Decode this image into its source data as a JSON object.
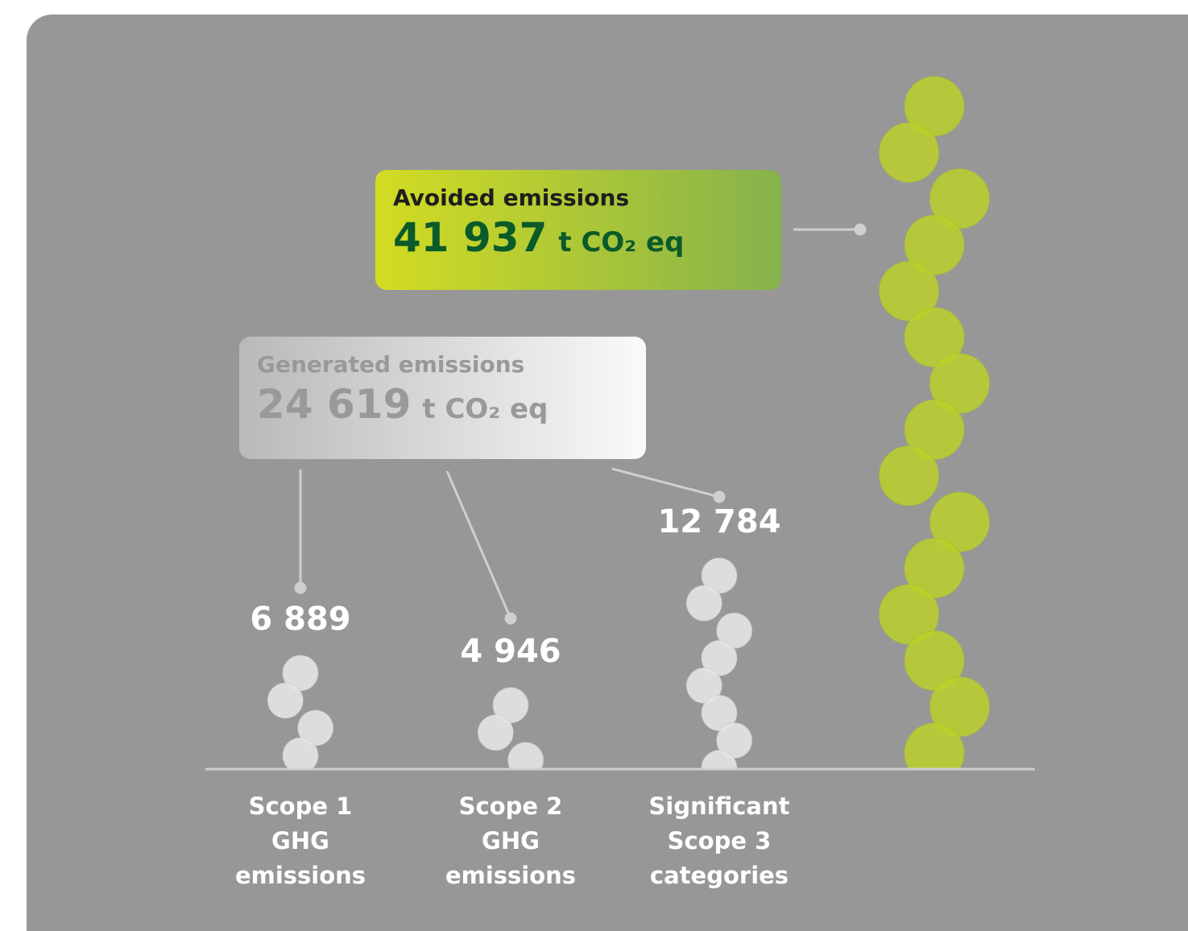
{
  "chart_data": {
    "type": "bar",
    "categories": [
      "Scope 1 GHG emissions",
      "Scope 2 GHG emissions",
      "Significant Scope 3 categories",
      null
    ],
    "values": [
      6889,
      4946,
      12784,
      41937
    ],
    "value_labels": [
      "6 889",
      "4 946",
      "12 784",
      "41 937"
    ],
    "colors": [
      "#e4e4e4",
      "#e4e4e4",
      "#e4e4e4",
      "#bccf2a"
    ],
    "generated": {
      "title": "Generated emissions",
      "total": "24 619",
      "unit": "t CO₂ eq"
    },
    "avoided": {
      "title": "Avoided emissions",
      "unit": "t CO₂ eq"
    }
  }
}
